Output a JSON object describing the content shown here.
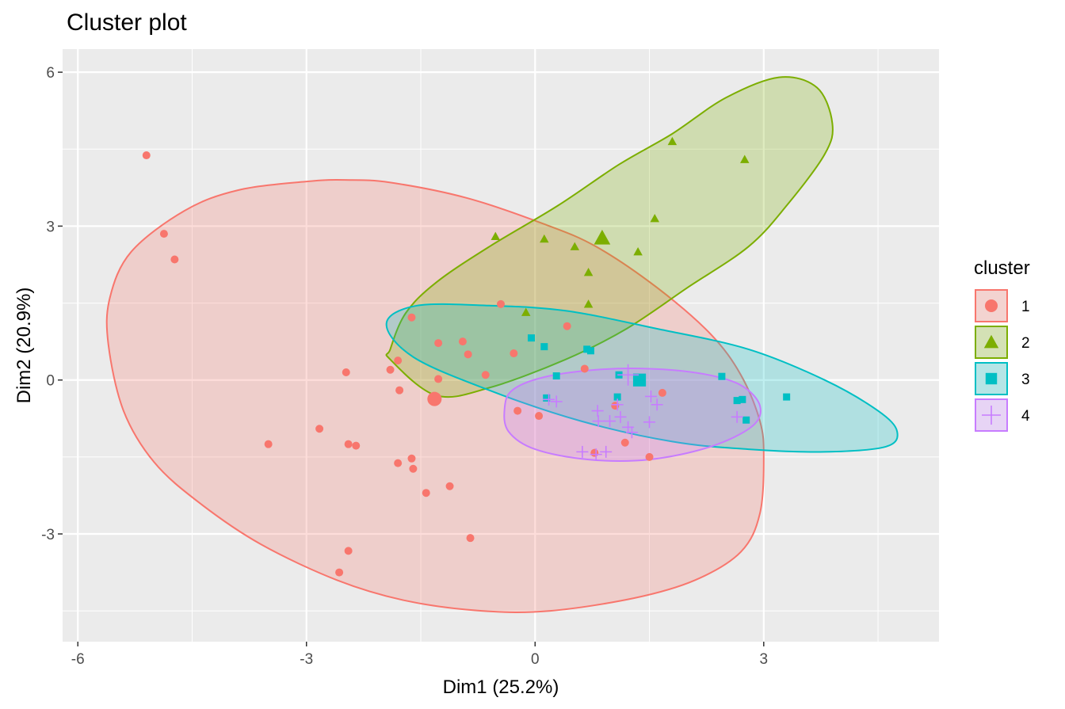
{
  "chart_data": {
    "type": "scatter",
    "title": "Cluster plot",
    "xlabel": "Dim1 (25.2%)",
    "ylabel": "Dim2 (20.9%)",
    "xlim": [
      -6.2,
      5.3
    ],
    "ylim": [
      -5.1,
      6.45
    ],
    "xticks": [
      -6,
      -3,
      0,
      3
    ],
    "yticks": [
      -3,
      0,
      3,
      6
    ],
    "xtick_labels": [
      "-6",
      "-3",
      "0",
      "3"
    ],
    "ytick_labels": [
      "-3",
      "0",
      "3",
      "6"
    ],
    "grid": true,
    "legend": {
      "title": "cluster",
      "position": "right"
    },
    "series": [
      {
        "name": "1",
        "color": "#F8766D",
        "shape": "circle",
        "center": [
          -1.32,
          -0.37
        ],
        "hull": [
          [
            -5.6,
            0.7
          ],
          [
            -5.58,
            1.6
          ],
          [
            -5.3,
            2.5
          ],
          [
            -4.6,
            3.3
          ],
          [
            -3.9,
            3.7
          ],
          [
            -3.0,
            3.87
          ],
          [
            -2.5,
            3.9
          ],
          [
            -1.9,
            3.85
          ],
          [
            -0.9,
            3.55
          ],
          [
            0.1,
            3.05
          ],
          [
            0.8,
            2.6
          ],
          [
            1.6,
            1.8
          ],
          [
            2.3,
            0.9
          ],
          [
            2.7,
            0.1
          ],
          [
            2.95,
            -0.8
          ],
          [
            3.0,
            -1.5
          ],
          [
            2.95,
            -2.6
          ],
          [
            2.7,
            -3.35
          ],
          [
            2.1,
            -3.9
          ],
          [
            1.3,
            -4.25
          ],
          [
            0.2,
            -4.5
          ],
          [
            -0.7,
            -4.5
          ],
          [
            -1.7,
            -4.3
          ],
          [
            -2.6,
            -3.9
          ],
          [
            -3.6,
            -3.2
          ],
          [
            -4.4,
            -2.4
          ],
          [
            -5.0,
            -1.6
          ],
          [
            -5.4,
            -0.6
          ]
        ],
        "points": [
          [
            -5.1,
            4.38
          ],
          [
            -4.87,
            2.85
          ],
          [
            -4.73,
            2.35
          ],
          [
            -2.48,
            0.15
          ],
          [
            -3.5,
            -1.25
          ],
          [
            -2.83,
            -0.95
          ],
          [
            -2.45,
            -1.25
          ],
          [
            -2.35,
            -1.28
          ],
          [
            -1.8,
            -1.62
          ],
          [
            -1.62,
            -1.53
          ],
          [
            -1.6,
            -1.73
          ],
          [
            -1.43,
            -2.2
          ],
          [
            -1.12,
            -2.07
          ],
          [
            -0.85,
            -3.08
          ],
          [
            -2.45,
            -3.33
          ],
          [
            -2.57,
            -3.75
          ],
          [
            -1.78,
            -0.2
          ],
          [
            -1.9,
            0.2
          ],
          [
            -1.8,
            0.38
          ],
          [
            -1.62,
            1.22
          ],
          [
            -1.27,
            0.72
          ],
          [
            -1.27,
            0.02
          ],
          [
            -0.95,
            0.75
          ],
          [
            -0.88,
            0.5
          ],
          [
            -0.65,
            0.1
          ],
          [
            -0.45,
            1.48
          ],
          [
            -0.28,
            0.52
          ],
          [
            0.42,
            1.05
          ],
          [
            0.65,
            0.22
          ],
          [
            -0.23,
            -0.6
          ],
          [
            0.05,
            -0.7
          ],
          [
            1.05,
            -0.5
          ],
          [
            0.78,
            -1.42
          ],
          [
            1.18,
            -1.22
          ],
          [
            1.5,
            -1.5
          ],
          [
            1.67,
            -0.25
          ]
        ]
      },
      {
        "name": "2",
        "color": "#7CAE00",
        "shape": "triangle",
        "center": [
          0.88,
          2.77
        ],
        "hull": [
          [
            -1.9,
            0.4
          ],
          [
            -1.9,
            0.6
          ],
          [
            -1.7,
            1.3
          ],
          [
            -1.3,
            1.9
          ],
          [
            -0.6,
            2.6
          ],
          [
            0.3,
            3.4
          ],
          [
            1.1,
            4.2
          ],
          [
            1.8,
            4.8
          ],
          [
            2.5,
            5.5
          ],
          [
            3.2,
            5.9
          ],
          [
            3.7,
            5.7
          ],
          [
            3.9,
            5.0
          ],
          [
            3.8,
            4.4
          ],
          [
            3.3,
            3.4
          ],
          [
            2.8,
            2.6
          ],
          [
            2.0,
            1.8
          ],
          [
            1.2,
            1.0
          ],
          [
            0.4,
            0.4
          ],
          [
            -0.6,
            -0.15
          ],
          [
            -1.3,
            -0.3
          ]
        ],
        "points": [
          [
            1.8,
            4.65
          ],
          [
            2.75,
            4.3
          ],
          [
            1.57,
            3.15
          ],
          [
            -0.52,
            2.8
          ],
          [
            0.12,
            2.75
          ],
          [
            0.52,
            2.6
          ],
          [
            1.35,
            2.5
          ],
          [
            0.7,
            2.1
          ],
          [
            0.7,
            1.48
          ],
          [
            -0.12,
            1.32
          ]
        ]
      },
      {
        "name": "3",
        "color": "#00BFC4",
        "shape": "square",
        "center": [
          1.37,
          0.0
        ],
        "hull": [
          [
            -1.95,
            1.1
          ],
          [
            -1.55,
            1.45
          ],
          [
            -0.6,
            1.45
          ],
          [
            0.4,
            1.35
          ],
          [
            1.6,
            1.0
          ],
          [
            2.8,
            0.6
          ],
          [
            3.8,
            0.0
          ],
          [
            4.5,
            -0.6
          ],
          [
            4.75,
            -1.0
          ],
          [
            4.6,
            -1.3
          ],
          [
            3.8,
            -1.4
          ],
          [
            2.8,
            -1.35
          ],
          [
            1.8,
            -1.2
          ],
          [
            0.6,
            -0.8
          ],
          [
            -0.6,
            -0.2
          ],
          [
            -1.6,
            0.45
          ]
        ],
        "points": [
          [
            -0.05,
            0.82
          ],
          [
            0.12,
            0.65
          ],
          [
            0.68,
            0.6
          ],
          [
            0.73,
            0.57
          ],
          [
            0.28,
            0.08
          ],
          [
            1.1,
            0.1
          ],
          [
            2.45,
            0.07
          ],
          [
            1.08,
            -0.33
          ],
          [
            2.65,
            -0.4
          ],
          [
            2.72,
            -0.38
          ],
          [
            2.77,
            -0.78
          ],
          [
            3.3,
            -0.33
          ],
          [
            0.15,
            -0.35
          ]
        ]
      },
      {
        "name": "4",
        "color": "#C77CFF",
        "shape": "plus",
        "center": [
          1.22,
          0.1
        ],
        "hull": [
          [
            -0.4,
            -0.55
          ],
          [
            -0.3,
            -0.2
          ],
          [
            0.1,
            0.05
          ],
          [
            0.8,
            0.2
          ],
          [
            1.5,
            0.22
          ],
          [
            2.2,
            0.12
          ],
          [
            2.7,
            -0.1
          ],
          [
            2.95,
            -0.5
          ],
          [
            2.85,
            -0.9
          ],
          [
            2.3,
            -1.3
          ],
          [
            1.5,
            -1.55
          ],
          [
            0.7,
            -1.55
          ],
          [
            0.0,
            -1.35
          ],
          [
            -0.35,
            -1.0
          ]
        ],
        "points": [
          [
            0.18,
            -0.38
          ],
          [
            0.28,
            -0.42
          ],
          [
            0.82,
            -0.6
          ],
          [
            1.08,
            -0.48
          ],
          [
            1.12,
            -0.72
          ],
          [
            0.98,
            -0.8
          ],
          [
            0.83,
            -0.8
          ],
          [
            1.22,
            -0.92
          ],
          [
            1.27,
            -1.02
          ],
          [
            1.52,
            -0.32
          ],
          [
            1.6,
            -0.48
          ],
          [
            1.5,
            -0.82
          ],
          [
            0.62,
            -1.4
          ],
          [
            0.93,
            -1.4
          ],
          [
            0.8,
            -1.45
          ],
          [
            2.65,
            -0.72
          ]
        ]
      }
    ]
  }
}
